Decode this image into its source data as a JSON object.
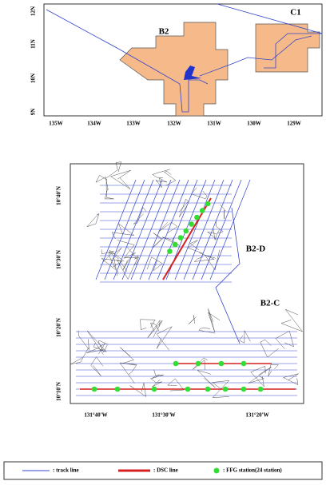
{
  "top_map": {
    "regions": [
      "B2",
      "C1"
    ],
    "x_labels": [
      "135W",
      "134W",
      "133W",
      "132W",
      "131W",
      "130W",
      "129W"
    ],
    "y_labels": [
      "12N",
      "11N",
      "10N",
      "9N"
    ]
  },
  "bottom_map": {
    "regions": [
      "B2-D",
      "B2-C"
    ],
    "x_labels": [
      "131°40'W",
      "131°30'W",
      "131°20'W"
    ],
    "y_labels": [
      "10°40'N",
      "10°30'N",
      "10°20'N",
      "10°10'N"
    ]
  },
  "legend": {
    "items": [
      ": track line",
      ": DSC line",
      ": FFG station(24 station)"
    ]
  }
}
